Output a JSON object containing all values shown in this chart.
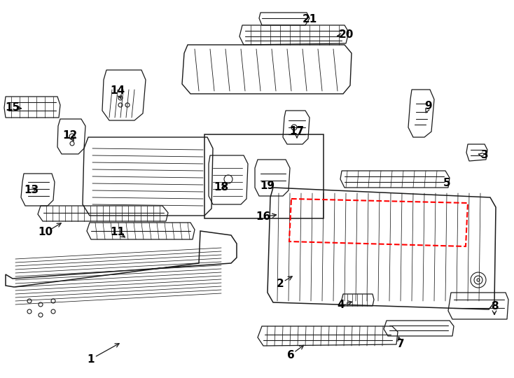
{
  "bg_color": "#ffffff",
  "line_color": "#1a1a1a",
  "red_dash_color": "#ff0000",
  "label_color": "#000000",
  "figsize": [
    7.34,
    5.4
  ],
  "dpi": 100,
  "labels": [
    [
      "1",
      130,
      513,
      175,
      488
    ],
    [
      "2",
      400,
      405,
      422,
      392
    ],
    [
      "3",
      692,
      222,
      682,
      220
    ],
    [
      "4",
      487,
      435,
      508,
      430
    ],
    [
      "5",
      638,
      262,
      638,
      260
    ],
    [
      "6",
      415,
      507,
      438,
      490
    ],
    [
      "7",
      572,
      492,
      568,
      476
    ],
    [
      "8",
      706,
      438,
      706,
      455
    ],
    [
      "9",
      612,
      152,
      606,
      166
    ],
    [
      "10",
      65,
      332,
      92,
      316
    ],
    [
      "11",
      168,
      332,
      183,
      342
    ],
    [
      "12",
      100,
      193,
      108,
      206
    ],
    [
      "13",
      45,
      272,
      57,
      266
    ],
    [
      "14",
      168,
      130,
      175,
      146
    ],
    [
      "15",
      18,
      153,
      36,
      156
    ],
    [
      "16",
      376,
      310,
      400,
      306
    ],
    [
      "17",
      424,
      188,
      424,
      198
    ],
    [
      "18",
      316,
      268,
      328,
      262
    ],
    [
      "19",
      382,
      266,
      390,
      258
    ],
    [
      "20",
      494,
      50,
      476,
      52
    ],
    [
      "21",
      442,
      28,
      440,
      27
    ]
  ]
}
